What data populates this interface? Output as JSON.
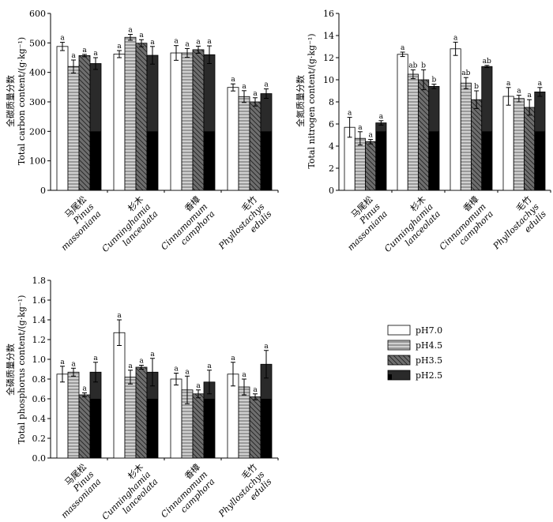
{
  "chart_data": [
    {
      "type": "bar",
      "ylabel_cn": "全碳质量分数",
      "ylabel_en": "Total carbon content/(g·kg⁻¹)",
      "ylim": [
        0,
        600
      ],
      "yticks": [
        0,
        100,
        200,
        300,
        400,
        500,
        600
      ],
      "categories": [
        {
          "cn": "马尾松",
          "latin": [
            "Pinus",
            "massoniana"
          ]
        },
        {
          "cn": "杉木",
          "latin": [
            "Cunninghamia",
            "lanceolata"
          ]
        },
        {
          "cn": "香樟",
          "latin": [
            "Cinnamomum",
            "camphora"
          ]
        },
        {
          "cn": "毛竹",
          "latin": [
            "Phyllostachys",
            "edulis"
          ]
        }
      ],
      "series": [
        {
          "name": "pH7.0",
          "values": [
            488,
            462,
            466,
            349
          ],
          "errors": [
            14,
            12,
            25,
            12
          ],
          "labels": [
            "a",
            "a",
            "a",
            "a"
          ]
        },
        {
          "name": "pH4.5",
          "values": [
            420,
            519,
            466,
            318
          ],
          "errors": [
            22,
            10,
            15,
            20
          ],
          "labels": [
            "a",
            "a",
            "a",
            "a"
          ]
        },
        {
          "name": "pH3.5",
          "values": [
            457,
            499,
            477,
            300
          ],
          "errors": [
            4,
            12,
            12,
            14
          ],
          "labels": [
            "a",
            "a",
            "a",
            "a"
          ]
        },
        {
          "name": "pH2.5",
          "values": [
            430,
            458,
            460,
            328
          ],
          "errors": [
            20,
            30,
            30,
            16
          ],
          "labels": [
            "a",
            "a",
            "a",
            "a"
          ]
        }
      ]
    },
    {
      "type": "bar",
      "ylabel_cn": "全氮质量分数",
      "ylabel_en": "Total nitrogen content/(g·kg⁻¹)",
      "ylim": [
        0,
        16
      ],
      "yticks": [
        0,
        2,
        4,
        6,
        8,
        10,
        12,
        14,
        16
      ],
      "categories": [
        {
          "cn": "马尾松",
          "latin": [
            "Pinus",
            "massoniana"
          ]
        },
        {
          "cn": "杉木",
          "latin": [
            "Cunninghamia",
            "lanceolata"
          ]
        },
        {
          "cn": "香樟",
          "latin": [
            "Cinnamomum",
            "camphora"
          ]
        },
        {
          "cn": "毛竹",
          "latin": [
            "Phyllostachys",
            "edulis"
          ]
        }
      ],
      "series": [
        {
          "name": "pH7.0",
          "values": [
            5.7,
            12.3,
            12.8,
            8.5
          ],
          "errors": [
            0.9,
            0.2,
            0.6,
            0.8
          ],
          "labels": [
            "a",
            "a",
            "a",
            "a"
          ]
        },
        {
          "name": "pH4.5",
          "values": [
            4.7,
            10.5,
            9.7,
            8.3
          ],
          "errors": [
            0.6,
            0.4,
            0.5,
            0.3
          ],
          "labels": [
            "a",
            "ab",
            "ab",
            "a"
          ]
        },
        {
          "name": "pH3.5",
          "values": [
            4.4,
            10.0,
            8.2,
            7.5
          ],
          "errors": [
            0.2,
            0.9,
            0.8,
            0.7
          ],
          "labels": [
            "a",
            "b",
            "b",
            "a"
          ]
        },
        {
          "name": "pH2.5",
          "values": [
            6.1,
            9.4,
            11.2,
            8.9
          ],
          "errors": [
            0.2,
            0.2,
            0.1,
            0.4
          ],
          "labels": [
            "a",
            "b",
            "ab",
            "a"
          ]
        }
      ]
    },
    {
      "type": "bar",
      "ylabel_cn": "全磷质量分数",
      "ylabel_en": "Total phosphorus content/(g·kg⁻¹)",
      "ylim": [
        0,
        1.8
      ],
      "yticks": [
        0,
        0.2,
        0.4,
        0.6,
        0.8,
        1.0,
        1.2,
        1.4,
        1.6,
        1.8
      ],
      "categories": [
        {
          "cn": "马尾松",
          "latin": [
            "Pinus",
            "massoniana"
          ]
        },
        {
          "cn": "杉木",
          "latin": [
            "Cunninghamia",
            "lanceolata"
          ]
        },
        {
          "cn": "香樟",
          "latin": [
            "Cinnamomum",
            "camphora"
          ]
        },
        {
          "cn": "毛竹",
          "latin": [
            "Phyllostachys",
            "edulis"
          ]
        }
      ],
      "series": [
        {
          "name": "pH7.0",
          "values": [
            0.85,
            1.27,
            0.8,
            0.85
          ],
          "errors": [
            0.08,
            0.13,
            0.06,
            0.12
          ],
          "labels": [
            "a",
            "a",
            "a",
            "a"
          ]
        },
        {
          "name": "pH4.5",
          "values": [
            0.87,
            0.82,
            0.69,
            0.72
          ],
          "errors": [
            0.04,
            0.07,
            0.14,
            0.08
          ],
          "labels": [
            "a",
            "a",
            "a",
            "a"
          ]
        },
        {
          "name": "pH3.5",
          "values": [
            0.64,
            0.92,
            0.65,
            0.62
          ],
          "errors": [
            0.02,
            0.02,
            0.04,
            0.03
          ],
          "labels": [
            "a",
            "a",
            "a",
            "a"
          ]
        },
        {
          "name": "pH2.5",
          "values": [
            0.87,
            0.87,
            0.77,
            0.95
          ],
          "errors": [
            0.1,
            0.14,
            0.12,
            0.14
          ],
          "labels": [
            "a",
            "a",
            "a",
            "a"
          ]
        }
      ]
    }
  ],
  "legend": {
    "placement": "right-middle",
    "entries": [
      "pH7.0",
      "pH4.5",
      "pH3.5",
      "pH2.5"
    ]
  },
  "colors": {
    "pH7.0": "#ffffff",
    "pH4.5": "#d0d0d0",
    "pH3.5": "#6e6e6e",
    "pH2.5": "#2a2a2a"
  }
}
